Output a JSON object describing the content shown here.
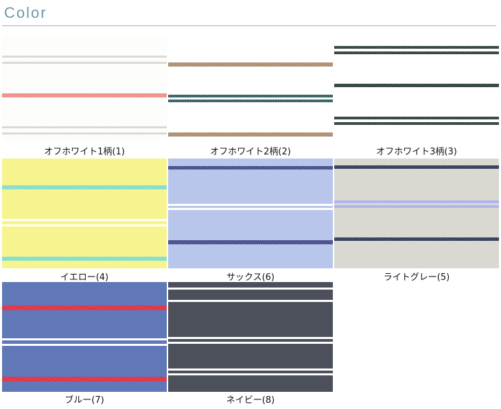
{
  "header": {
    "title": "Color"
  },
  "swatches": [
    {
      "label": "オフホワイト1柄(1)",
      "base": "#fdfdfb",
      "stripe_colors": [
        "#d6d6d2",
        "#ee8c82"
      ]
    },
    {
      "label": "オフホワイト2柄(2)",
      "base": "#ffffff",
      "stripe_colors": [
        "#a98a6c",
        "#2e5a5c"
      ]
    },
    {
      "label": "オフホワイト3柄(3)",
      "base": "#ffffff",
      "stripe_colors": [
        "#2a3a36"
      ]
    },
    {
      "label": "イエロー(4)",
      "base": "#f6f48f",
      "stripe_colors": [
        "#7fdcc8",
        "#ffffff"
      ]
    },
    {
      "label": "サックス(6)",
      "base": "#b9c6ec",
      "stripe_colors": [
        "#404682",
        "#ffffff"
      ]
    },
    {
      "label": "ライトグレー(5)",
      "base": "#d9d9d2",
      "stripe_colors": [
        "#2a3452",
        "#a9aef0"
      ]
    },
    {
      "label": "ブルー(7)",
      "base": "#6077b8",
      "stripe_colors": [
        "#e0283a",
        "#ffffff"
      ]
    },
    {
      "label": "ネイビー(8)",
      "base": "#4c505a",
      "stripe_colors": [
        "#ffffff"
      ]
    }
  ]
}
